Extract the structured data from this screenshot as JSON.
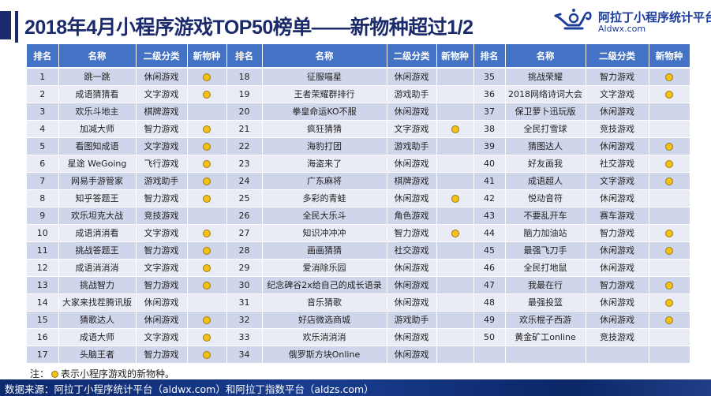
{
  "header": {
    "title": "2018年4月小程序游戏TOP50榜单——新物种超过1/2",
    "brand_name": "阿拉丁小程序统计平台",
    "brand_url": "Aldwx.com",
    "brand_icon": "magic-lamp-logo"
  },
  "table": {
    "columns": [
      "排名",
      "名称",
      "二级分类",
      "新物种",
      "排名",
      "名称",
      "二级分类",
      "新物种",
      "排名",
      "名称",
      "二级分类",
      "新物种"
    ],
    "new_species_icon": "yellow-dot",
    "rows": [
      [
        {
          "rank": "1",
          "name": "跳一跳",
          "category": "休闲游戏",
          "new": true
        },
        {
          "rank": "18",
          "name": "征服喵星",
          "category": "休闲游戏",
          "new": false
        },
        {
          "rank": "35",
          "name": "挑战荣耀",
          "category": "智力游戏",
          "new": true
        }
      ],
      [
        {
          "rank": "2",
          "name": "成语猜猜看",
          "category": "文字游戏",
          "new": true
        },
        {
          "rank": "19",
          "name": "王者荣耀群排行",
          "category": "游戏助手",
          "new": false
        },
        {
          "rank": "36",
          "name": "2018网络诗词大会",
          "category": "文字游戏",
          "new": true
        }
      ],
      [
        {
          "rank": "3",
          "name": "欢乐斗地主",
          "category": "棋牌游戏",
          "new": false
        },
        {
          "rank": "20",
          "name": "拳皇命运KO不服",
          "category": "休闲游戏",
          "new": false
        },
        {
          "rank": "37",
          "name": "保卫萝卜迅玩版",
          "category": "休闲游戏",
          "new": false
        }
      ],
      [
        {
          "rank": "4",
          "name": "加减大师",
          "category": "智力游戏",
          "new": true
        },
        {
          "rank": "21",
          "name": "疯狂猜猜",
          "category": "文字游戏",
          "new": true
        },
        {
          "rank": "38",
          "name": "全民打雪球",
          "category": "竞技游戏",
          "new": false
        }
      ],
      [
        {
          "rank": "5",
          "name": "看图知成语",
          "category": "文字游戏",
          "new": true
        },
        {
          "rank": "22",
          "name": "海豹打团",
          "category": "游戏助手",
          "new": false
        },
        {
          "rank": "39",
          "name": "猜图达人",
          "category": "休闲游戏",
          "new": true
        }
      ],
      [
        {
          "rank": "6",
          "name": "星途 WeGoing",
          "category": "飞行游戏",
          "new": true
        },
        {
          "rank": "23",
          "name": "海盗来了",
          "category": "休闲游戏",
          "new": false
        },
        {
          "rank": "40",
          "name": "好友画我",
          "category": "社交游戏",
          "new": true
        }
      ],
      [
        {
          "rank": "7",
          "name": "网易手游管家",
          "category": "游戏助手",
          "new": true
        },
        {
          "rank": "24",
          "name": "广东麻将",
          "category": "棋牌游戏",
          "new": false
        },
        {
          "rank": "41",
          "name": "成语超人",
          "category": "文字游戏",
          "new": true
        }
      ],
      [
        {
          "rank": "8",
          "name": "知乎答题王",
          "category": "智力游戏",
          "new": true
        },
        {
          "rank": "25",
          "name": "多彩的青蛙",
          "category": "休闲游戏",
          "new": true
        },
        {
          "rank": "42",
          "name": "悦动音符",
          "category": "休闲游戏",
          "new": false
        }
      ],
      [
        {
          "rank": "9",
          "name": "欢乐坦克大战",
          "category": "竞技游戏",
          "new": false
        },
        {
          "rank": "26",
          "name": "全民大乐斗",
          "category": "角色游戏",
          "new": false
        },
        {
          "rank": "43",
          "name": "不要乱开车",
          "category": "赛车游戏",
          "new": false
        }
      ],
      [
        {
          "rank": "10",
          "name": "成语消消看",
          "category": "文字游戏",
          "new": true
        },
        {
          "rank": "27",
          "name": "知识冲冲冲",
          "category": "智力游戏",
          "new": true
        },
        {
          "rank": "44",
          "name": "脑力加油站",
          "category": "智力游戏",
          "new": true
        }
      ],
      [
        {
          "rank": "11",
          "name": "挑战答题王",
          "category": "智力游戏",
          "new": true
        },
        {
          "rank": "28",
          "name": "画画猜猜",
          "category": "社交游戏",
          "new": false
        },
        {
          "rank": "45",
          "name": "最强飞刀手",
          "category": "休闲游戏",
          "new": true
        }
      ],
      [
        {
          "rank": "12",
          "name": "成语消消消",
          "category": "文字游戏",
          "new": true
        },
        {
          "rank": "29",
          "name": "爱消除乐园",
          "category": "休闲游戏",
          "new": false
        },
        {
          "rank": "46",
          "name": "全民打地鼠",
          "category": "休闲游戏",
          "new": false
        }
      ],
      [
        {
          "rank": "13",
          "name": "挑战智力",
          "category": "智力游戏",
          "new": true
        },
        {
          "rank": "30",
          "name": "纪念碑谷2x给自己的成长语录",
          "category": "休闲游戏",
          "new": false
        },
        {
          "rank": "47",
          "name": "我最在行",
          "category": "智力游戏",
          "new": true
        }
      ],
      [
        {
          "rank": "14",
          "name": "大家来找茬腾讯版",
          "category": "休闲游戏",
          "new": false
        },
        {
          "rank": "31",
          "name": "音乐猜歌",
          "category": "休闲游戏",
          "new": false
        },
        {
          "rank": "48",
          "name": "最强投篮",
          "category": "休闲游戏",
          "new": true
        }
      ],
      [
        {
          "rank": "15",
          "name": "猜歌达人",
          "category": "休闲游戏",
          "new": true
        },
        {
          "rank": "32",
          "name": "好店微选商城",
          "category": "游戏助手",
          "new": false
        },
        {
          "rank": "49",
          "name": "欢乐棍子西游",
          "category": "休闲游戏",
          "new": true
        }
      ],
      [
        {
          "rank": "16",
          "name": "成语大师",
          "category": "文字游戏",
          "new": true
        },
        {
          "rank": "33",
          "name": "欢乐消消消",
          "category": "休闲游戏",
          "new": false
        },
        {
          "rank": "50",
          "name": "黄金矿工online",
          "category": "竞技游戏",
          "new": false
        }
      ],
      [
        {
          "rank": "17",
          "name": "头脑王者",
          "category": "智力游戏",
          "new": true
        },
        {
          "rank": "34",
          "name": "俄罗斯方块Online",
          "category": "休闲游戏",
          "new": false
        },
        {
          "rank": "",
          "name": "",
          "category": "",
          "new": false
        }
      ]
    ]
  },
  "note": {
    "prefix": "注：",
    "text": "表示小程序游戏的新物种。"
  },
  "footer": {
    "source": "数据来源：阿拉丁小程序统计平台（aldwx.com）和阿拉丁指数平台（aldzs.com）"
  },
  "colors": {
    "title": "#1b2a6b",
    "header_bg": "#4472c4",
    "row_dark": "#cfd5ea",
    "row_light": "#e9ebf5",
    "dot": "#f5c116",
    "footer_bg": "#0d2a6e"
  }
}
